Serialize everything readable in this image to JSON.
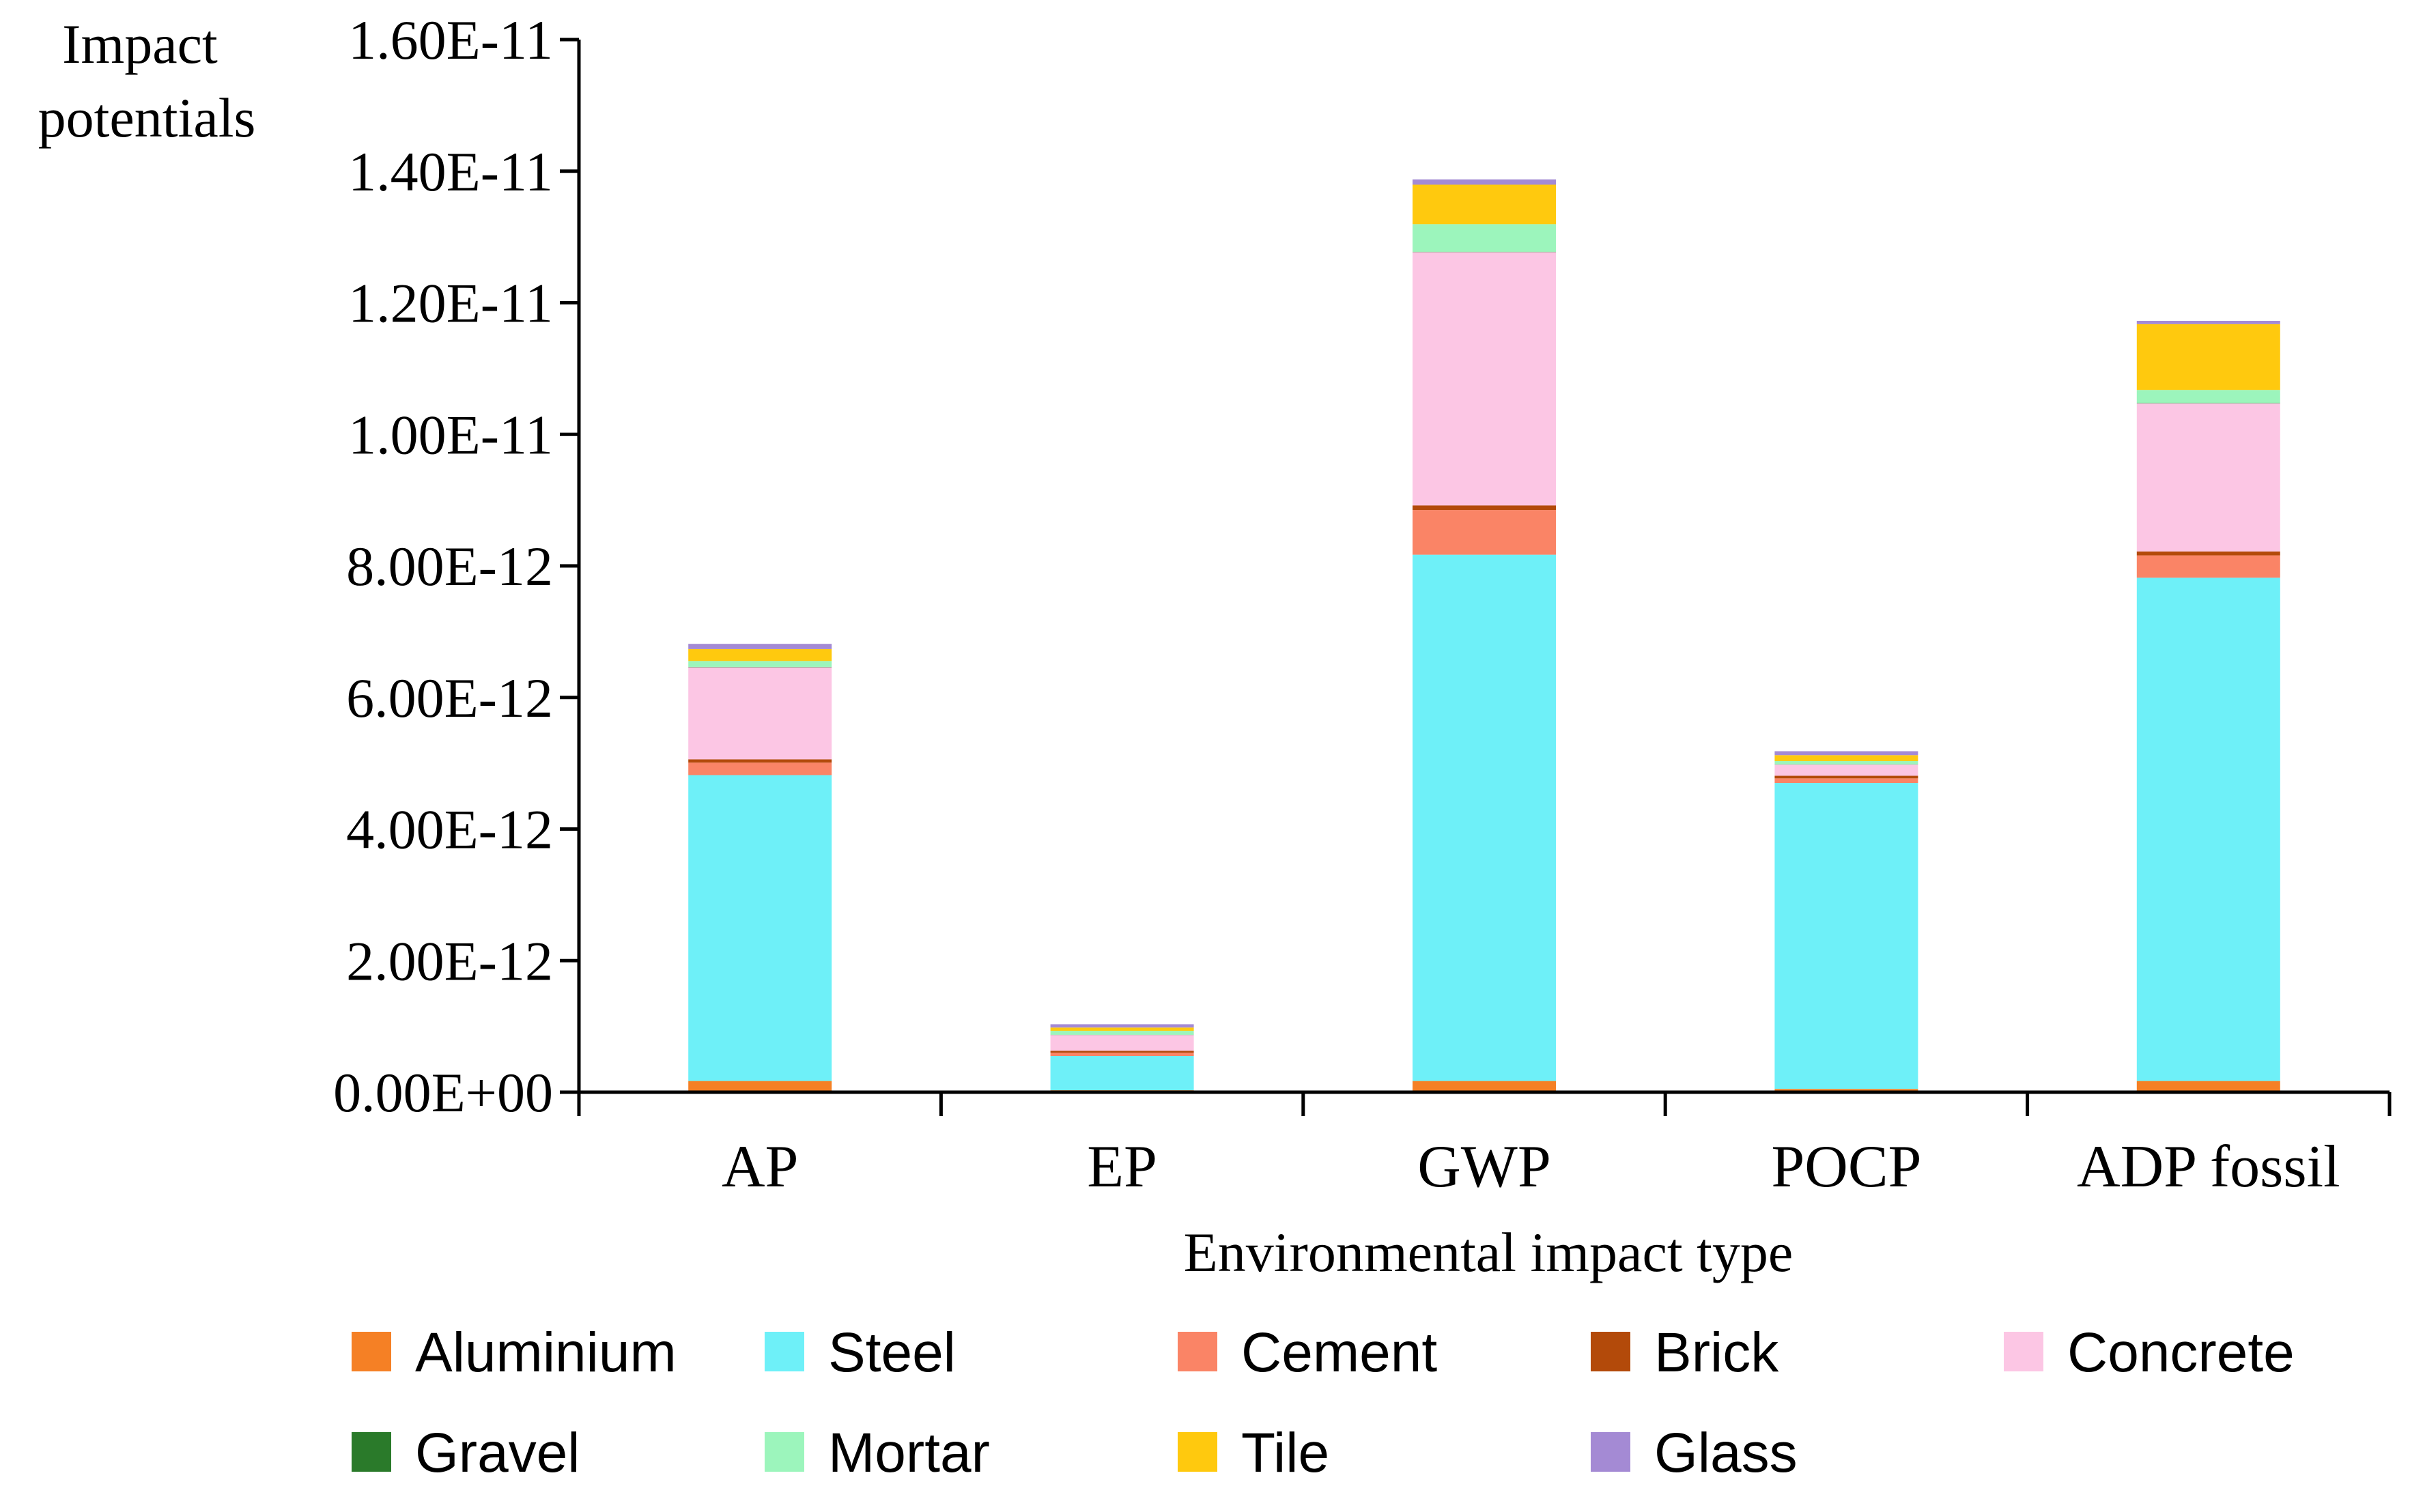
{
  "chart_data": {
    "type": "bar",
    "stacked": true,
    "title": "",
    "ylabel_lines": [
      "Impact",
      "potentials"
    ],
    "xlabel": "Environmental impact type",
    "categories": [
      "AP",
      "EP",
      "GWP",
      "POCP",
      "ADP fossil"
    ],
    "ylim": [
      0,
      1.6e-11
    ],
    "yticks": [
      0,
      2e-12,
      4e-12,
      6e-12,
      8e-12,
      1e-11,
      1.2e-11,
      1.4e-11,
      1.6e-11
    ],
    "ytick_labels": [
      "0.00E+00",
      "2.00E-12",
      "4.00E-12",
      "6.00E-12",
      "8.00E-12",
      "1.00E-11",
      "1.20E-11",
      "1.40E-11",
      "1.60E-11"
    ],
    "grid": false,
    "legend_position": "bottom",
    "series": [
      {
        "name": "Aluminium",
        "color": "#F58025",
        "values": [
          1.7e-13,
          3e-14,
          1.7e-13,
          5e-14,
          1.7e-13
        ]
      },
      {
        "name": "Steel",
        "color": "#6EF0F8",
        "values": [
          4.65e-12,
          5.2e-13,
          8e-12,
          4.65e-12,
          7.65e-12
        ]
      },
      {
        "name": "Cement",
        "color": "#FA8466",
        "values": [
          1.9e-13,
          5e-14,
          6.8e-13,
          7e-14,
          3.4e-13
        ]
      },
      {
        "name": "Brick",
        "color": "#B34A0A",
        "values": [
          5e-14,
          3e-14,
          7e-14,
          4e-14,
          6e-14
        ]
      },
      {
        "name": "Concrete",
        "color": "#FCC6E4",
        "values": [
          1.4e-12,
          2.4e-13,
          3.85e-12,
          1.7e-13,
          2.25e-12
        ]
      },
      {
        "name": "Gravel",
        "color": "#2A7A2A",
        "values": [
          5e-15,
          3e-15,
          5e-15,
          3e-15,
          5e-15
        ]
      },
      {
        "name": "Mortar",
        "color": "#9CF5BC",
        "values": [
          9e-14,
          6e-14,
          4.2e-13,
          5e-14,
          2e-13
        ]
      },
      {
        "name": "Tile",
        "color": "#FFC90E",
        "values": [
          1.8e-13,
          5e-14,
          6e-13,
          9e-14,
          1e-12
        ]
      },
      {
        "name": "Glass",
        "color": "#A48AD4",
        "values": [
          8e-14,
          5e-14,
          8e-14,
          6e-14,
          5e-14
        ]
      }
    ]
  }
}
